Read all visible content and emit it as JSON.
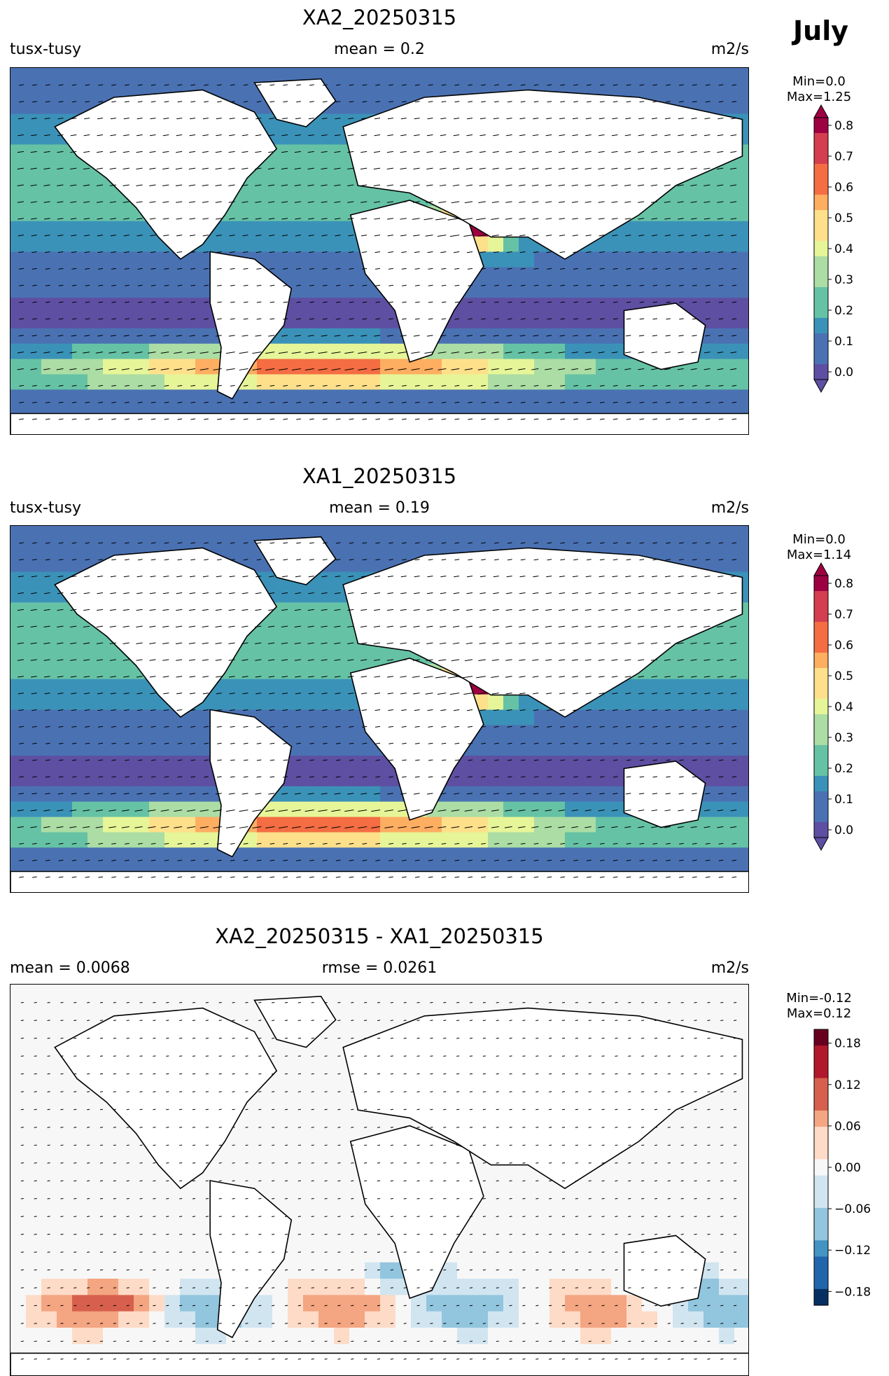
{
  "month": "July",
  "panels": [
    {
      "title": "XA2_20250315",
      "left_label": "tusx-tusy",
      "center_label": "mean = 0.2",
      "unit": "m2/s",
      "min_label": "Min=0.0",
      "max_label": "Max=1.25",
      "colormap": "Spectral_r",
      "colorbar_ticks": [
        "0.0",
        "0.1",
        "0.2",
        "0.3",
        "0.4",
        "0.5",
        "0.6",
        "0.7",
        "0.8"
      ],
      "colorbar_extend": "both"
    },
    {
      "title": "XA1_20250315",
      "left_label": "tusx-tusy",
      "center_label": "mean = 0.19",
      "unit": "m2/s",
      "min_label": "Min=0.0",
      "max_label": "Max=1.14",
      "colormap": "Spectral_r",
      "colorbar_ticks": [
        "0.0",
        "0.1",
        "0.2",
        "0.3",
        "0.4",
        "0.5",
        "0.6",
        "0.7",
        "0.8"
      ],
      "colorbar_extend": "both"
    },
    {
      "title": "XA2_20250315 - XA1_20250315",
      "left_label": "mean = 0.0068",
      "center_label": "rmse = 0.0261",
      "unit": "m2/s",
      "min_label": "Min=-0.12",
      "max_label": "Max=0.12",
      "colormap": "RdBu_r",
      "colorbar_ticks": [
        "0.18",
        "0.12",
        "0.06",
        "0.00",
        "−0.06",
        "−0.12",
        "−0.18"
      ],
      "colorbar_extend": "neither"
    }
  ],
  "chart_data": [
    {
      "type": "heatmap",
      "title": "XA2_20250315",
      "variable": "tusx-tusy",
      "mean": 0.2,
      "min": 0.0,
      "max": 1.25,
      "unit": "m2/s",
      "clim": [
        0.0,
        0.85
      ]
    },
    {
      "type": "heatmap",
      "title": "XA1_20250315",
      "variable": "tusx-tusy",
      "mean": 0.19,
      "min": 0.0,
      "max": 1.14,
      "unit": "m2/s",
      "clim": [
        0.0,
        0.85
      ]
    },
    {
      "type": "heatmap",
      "title": "XA2_20250315 - XA1_20250315",
      "mean": 0.0068,
      "rmse": 0.0261,
      "min": -0.12,
      "max": 0.12,
      "unit": "m2/s",
      "clim": [
        -0.2,
        0.2
      ]
    }
  ]
}
